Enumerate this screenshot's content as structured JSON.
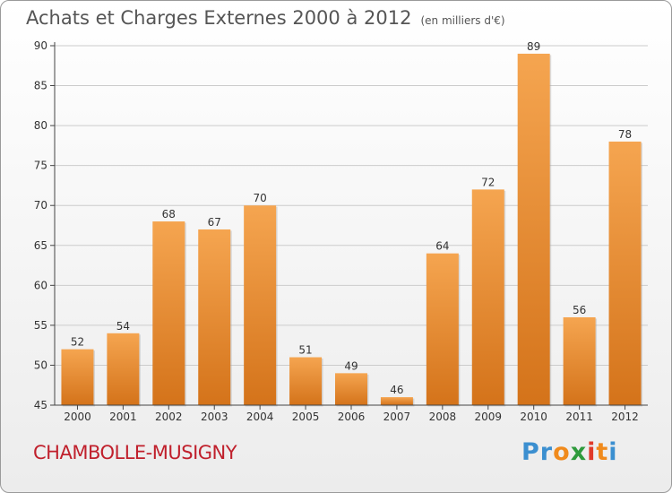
{
  "title": "Achats et Charges Externes 2000 à 2012",
  "subtitle": "(en milliers d'€)",
  "commune": "CHAMBOLLE-MUSIGNY",
  "logo": {
    "text": "Proxiti",
    "letters": [
      "P",
      "r",
      "o",
      "x",
      "i",
      "t",
      "i"
    ],
    "colors": [
      "#3b8fd0",
      "#3b8fd0",
      "#f08a1c",
      "#2e9a3c",
      "#e03a2a",
      "#f08a1c",
      "#3b8fd0"
    ]
  },
  "colors": {
    "bar_top": "#f5a550",
    "bar_bottom": "#d4731a",
    "axis": "#444444",
    "grid": "#cccccc",
    "title": "#555555",
    "commune": "#c0202c"
  },
  "chart_data": {
    "type": "bar",
    "categories": [
      "2000",
      "2001",
      "2002",
      "2003",
      "2004",
      "2005",
      "2006",
      "2007",
      "2008",
      "2009",
      "2010",
      "2011",
      "2012"
    ],
    "values": [
      52,
      54,
      68,
      67,
      70,
      51,
      49,
      46,
      64,
      72,
      89,
      56,
      78
    ],
    "ylim": [
      45,
      90
    ],
    "yticks": [
      45,
      50,
      55,
      60,
      65,
      70,
      75,
      80,
      85,
      90
    ],
    "grid": true,
    "data_labels": true
  }
}
